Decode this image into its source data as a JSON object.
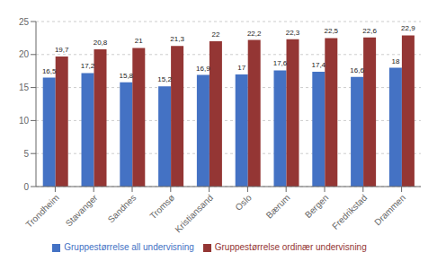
{
  "chart_data": {
    "type": "bar",
    "categories": [
      "Trondheim",
      "Stavanger",
      "Sandnes",
      "Tromsø",
      "Kristiansand",
      "Oslo",
      "Bærum",
      "Bergen",
      "Fredrikstad",
      "Drammen"
    ],
    "series": [
      {
        "name": "Gruppestørrelse all undervisning",
        "color": "#4472C4",
        "values": [
          16.5,
          17.2,
          15.8,
          15.2,
          16.9,
          17.0,
          17.6,
          17.4,
          16.6,
          18.0
        ],
        "value_labels": [
          "16,5",
          "17,2",
          "15,8",
          "15,2",
          "16,9",
          "17",
          "17,6",
          "17,4",
          "16,6",
          "18"
        ]
      },
      {
        "name": "Gruppestørrelse ordinær undervisning",
        "color": "#943634",
        "values": [
          19.7,
          20.8,
          21.0,
          21.3,
          22.0,
          22.2,
          22.3,
          22.5,
          22.6,
          22.9
        ],
        "value_labels": [
          "19,7",
          "20,8",
          "21",
          "21,3",
          "22",
          "22,2",
          "22,3",
          "22,5",
          "22,6",
          "22,9"
        ]
      }
    ],
    "ylim": [
      0,
      25
    ],
    "yticks": [
      0,
      5,
      10,
      15,
      20,
      25
    ],
    "grid": true,
    "legend": "bottom",
    "data_labels": true
  }
}
